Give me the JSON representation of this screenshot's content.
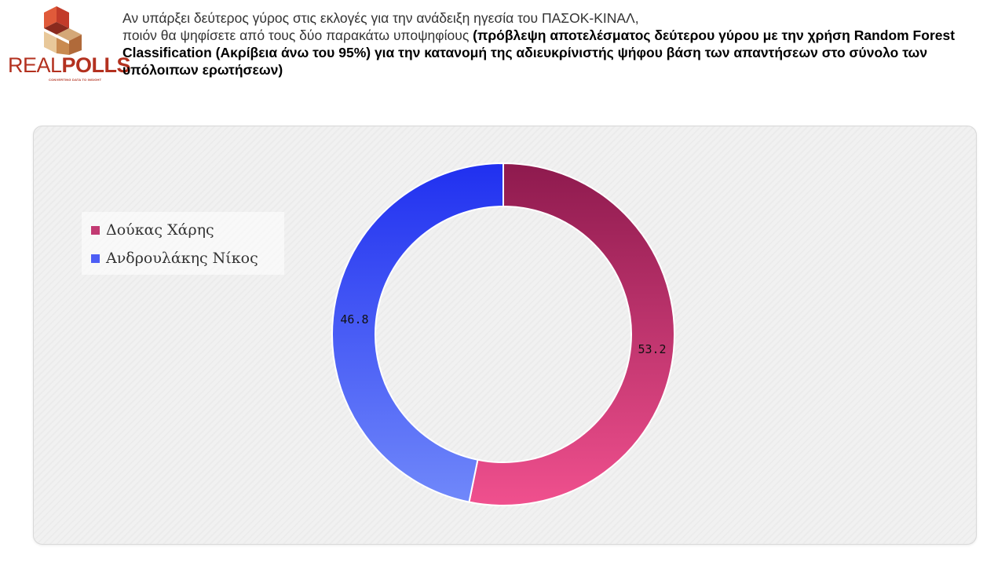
{
  "logo": {
    "word_a": "REAL",
    "word_b": "POLLS",
    "tagline": "CONVERTING DATA TO INSIGHT"
  },
  "header": {
    "line1": "Αν υπάρξει δεύτερος γύρος στις εκλογές για την ανάδειξη ηγεσία του ΠΑΣΟΚ-ΚΙΝΑΛ,",
    "line2_plain": "ποιόν θα ψηφίσετε από τους δύο παρακάτω υποψηφίους ",
    "line2_bold": "(πρόβλεψη αποτελέσματος δεύτερου γύρου με την χρήση Random Forest Classification (Ακρίβεια άνω του 95%) για την κατανομή της αδιευκρίνιστής ψήφου βάση των απαντήσεων στο σύνολο των  υπόλοιπων ερωτήσεων)"
  },
  "chart_data": {
    "type": "pie",
    "donut": true,
    "categories": [
      "Δούκας Χάρης",
      "Ανδρουλάκης Νίκος"
    ],
    "values": [
      53.2,
      46.8
    ],
    "labels": [
      "53.2",
      "46.8"
    ],
    "colors": [
      "#b32a66",
      "#3d4ff2"
    ],
    "legend": "left"
  }
}
